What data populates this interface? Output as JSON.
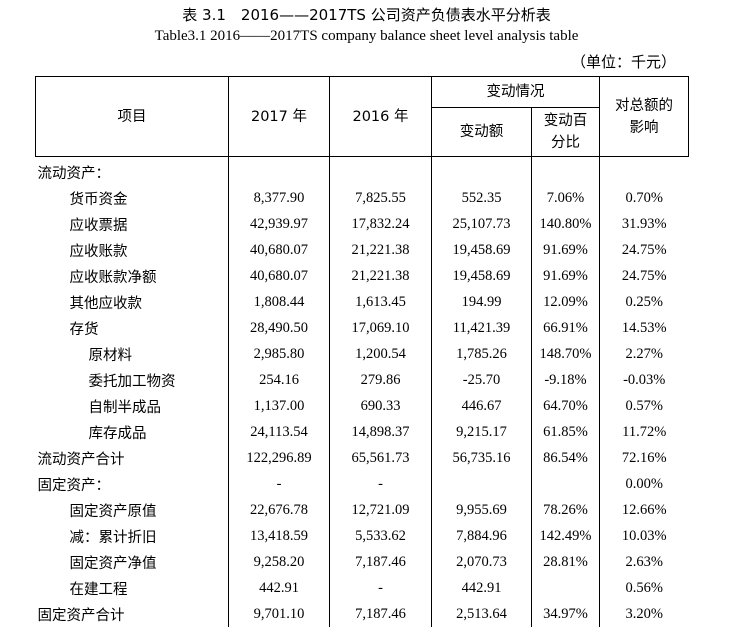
{
  "title_cn": "表 3.1　2016——2017TS 公司资产负债表水平分析表",
  "title_en": "Table3.1 2016——2017TS company balance sheet level analysis table",
  "unit": "（单位：千元）",
  "headers": {
    "item": "项目",
    "y2017": "2017 年",
    "y2016": "2016 年",
    "change": "变动情况",
    "change_amount": "变动额",
    "change_pct": "变动百分比",
    "impact": "对总额的影响"
  },
  "rows": [
    {
      "label": "流动资产：",
      "level": 0,
      "v2017": "",
      "v2016": "",
      "chg": "",
      "pct": "",
      "imp": ""
    },
    {
      "label": "货币资金",
      "level": 1,
      "v2017": "8,377.90",
      "v2016": "7,825.55",
      "chg": "552.35",
      "pct": "7.06%",
      "imp": "0.70%"
    },
    {
      "label": "应收票据",
      "level": 1,
      "v2017": "42,939.97",
      "v2016": "17,832.24",
      "chg": "25,107.73",
      "pct": "140.80%",
      "imp": "31.93%"
    },
    {
      "label": "应收账款",
      "level": 1,
      "v2017": "40,680.07",
      "v2016": "21,221.38",
      "chg": "19,458.69",
      "pct": "91.69%",
      "imp": "24.75%"
    },
    {
      "label": "应收账款净额",
      "level": 1,
      "v2017": "40,680.07",
      "v2016": "21,221.38",
      "chg": "19,458.69",
      "pct": "91.69%",
      "imp": "24.75%"
    },
    {
      "label": "其他应收款",
      "level": 1,
      "v2017": "1,808.44",
      "v2016": "1,613.45",
      "chg": "194.99",
      "pct": "12.09%",
      "imp": "0.25%"
    },
    {
      "label": "存货",
      "level": 1,
      "v2017": "28,490.50",
      "v2016": "17,069.10",
      "chg": "11,421.39",
      "pct": "66.91%",
      "imp": "14.53%"
    },
    {
      "label": "原材料",
      "level": 2,
      "v2017": "2,985.80",
      "v2016": "1,200.54",
      "chg": "1,785.26",
      "pct": "148.70%",
      "imp": "2.27%"
    },
    {
      "label": "委托加工物资",
      "level": 2,
      "v2017": "254.16",
      "v2016": "279.86",
      "chg": "-25.70",
      "pct": "-9.18%",
      "imp": "-0.03%"
    },
    {
      "label": "自制半成品",
      "level": 2,
      "v2017": "1,137.00",
      "v2016": "690.33",
      "chg": "446.67",
      "pct": "64.70%",
      "imp": "0.57%"
    },
    {
      "label": "库存成品",
      "level": 2,
      "v2017": "24,113.54",
      "v2016": "14,898.37",
      "chg": "9,215.17",
      "pct": "61.85%",
      "imp": "11.72%"
    },
    {
      "label": "流动资产合计",
      "level": 0,
      "v2017": "122,296.89",
      "v2016": "65,561.73",
      "chg": "56,735.16",
      "pct": "86.54%",
      "imp": "72.16%"
    },
    {
      "label": "固定资产：",
      "level": 0,
      "v2017": "-",
      "v2016": "-",
      "chg": "",
      "pct": "",
      "imp": "0.00%"
    },
    {
      "label": "固定资产原值",
      "level": 1,
      "v2017": "22,676.78",
      "v2016": "12,721.09",
      "chg": "9,955.69",
      "pct": "78.26%",
      "imp": "12.66%"
    },
    {
      "label": "减：累计折旧",
      "level": 1,
      "v2017": "13,418.59",
      "v2016": "5,533.62",
      "chg": "7,884.96",
      "pct": "142.49%",
      "imp": "10.03%"
    },
    {
      "label": "固定资产净值",
      "level": 1,
      "v2017": "9,258.20",
      "v2016": "7,187.46",
      "chg": "2,070.73",
      "pct": "28.81%",
      "imp": "2.63%"
    },
    {
      "label": "在建工程",
      "level": 1,
      "v2017": "442.91",
      "v2016": "-",
      "chg": "442.91",
      "pct": "",
      "imp": "0.56%"
    },
    {
      "label": "固定资产合计",
      "level": 0,
      "v2017": "9,701.10",
      "v2016": "7,187.46",
      "chg": "2,513.64",
      "pct": "34.97%",
      "imp": "3.20%"
    }
  ]
}
